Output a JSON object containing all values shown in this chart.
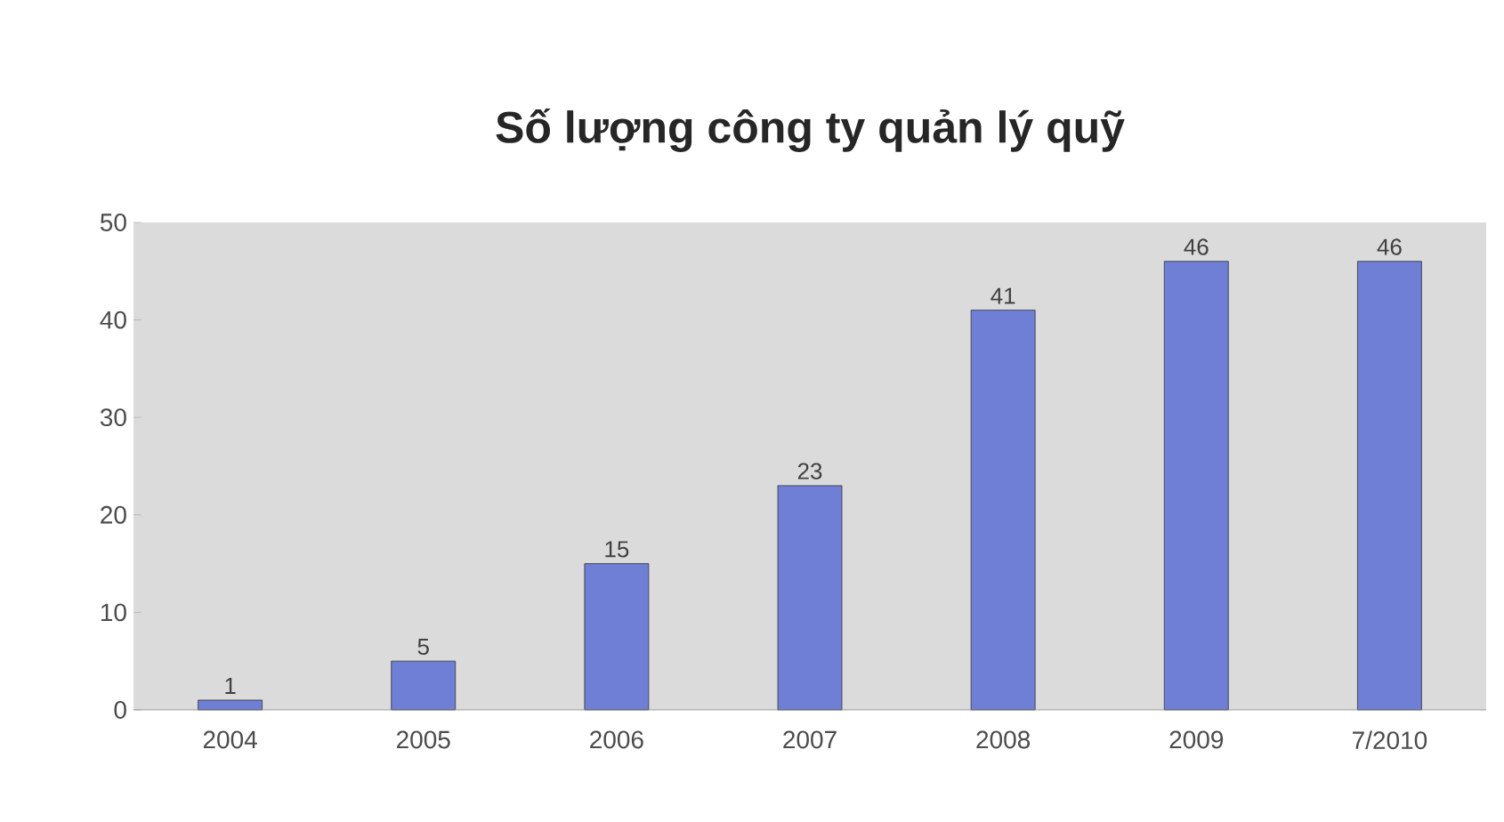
{
  "chart_data": {
    "type": "bar",
    "title": "Số lượng công ty quản lý quỹ",
    "categories": [
      "2004",
      "2005",
      "2006",
      "2007",
      "2008",
      "2009",
      "7/2010"
    ],
    "values": [
      1,
      5,
      15,
      23,
      41,
      46,
      46
    ],
    "color": "#6f7fd6",
    "ylim": [
      0,
      50
    ],
    "yticks": [
      0,
      10,
      20,
      30,
      40,
      50
    ],
    "data_labels": true
  }
}
